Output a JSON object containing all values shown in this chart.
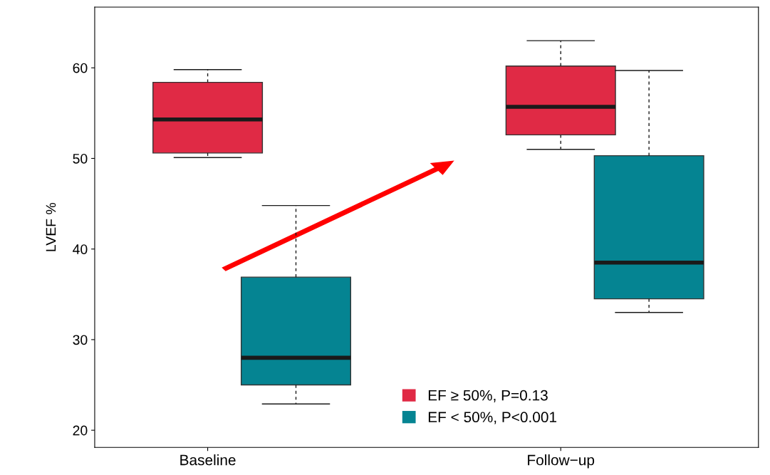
{
  "chart_data": {
    "type": "box",
    "ylabel": "LVEF %",
    "categories": [
      "Baseline",
      "Follow−up"
    ],
    "ylim": [
      18.1,
      66.7
    ],
    "yticks": [
      20,
      30,
      40,
      50,
      60
    ],
    "grid": false,
    "legend": "bottom",
    "series": [
      {
        "name": "EF ≥ 50%, P=0.13",
        "color": "#e02a45",
        "boxes": [
          {
            "low": 50.1,
            "q1": 50.6,
            "median": 54.3,
            "q3": 58.4,
            "high": 59.8
          },
          {
            "low": 51.0,
            "q1": 52.6,
            "median": 55.7,
            "q3": 60.2,
            "high": 63.0
          }
        ]
      },
      {
        "name": "EF < 50%, P<0.001",
        "color": "#058492",
        "boxes": [
          {
            "low": 22.9,
            "q1": 25.0,
            "median": 28.0,
            "q3": 36.9,
            "high": 44.8
          },
          {
            "low": 33.0,
            "q1": 34.5,
            "median": 38.5,
            "q3": 50.3,
            "high": 59.7
          }
        ]
      }
    ]
  }
}
